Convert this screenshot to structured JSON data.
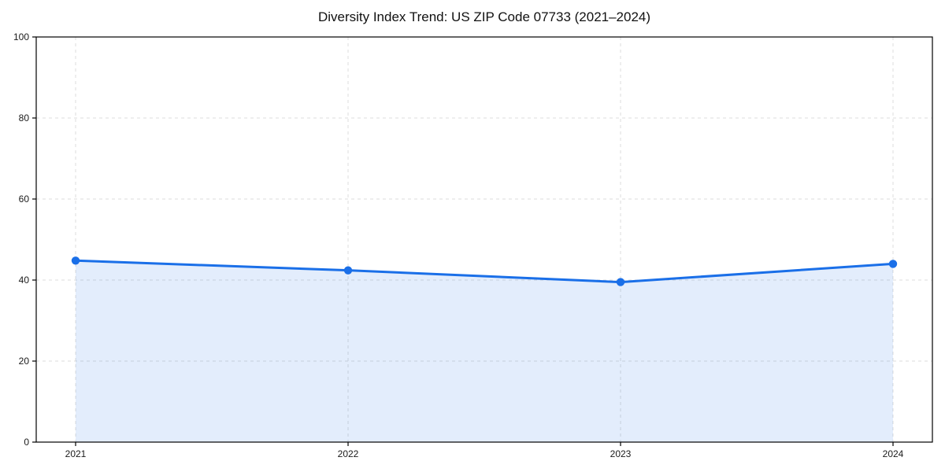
{
  "chart_data": {
    "type": "area",
    "title": "Diversity Index Trend: US ZIP Code 07733 (2021–2024)",
    "x": [
      2021,
      2022,
      2023,
      2024
    ],
    "x_tick_labels": [
      "2021",
      "2022",
      "2023",
      "2024"
    ],
    "series": [
      {
        "name": "Diversity Index",
        "values": [
          44.8,
          42.4,
          39.5,
          44.0
        ]
      }
    ],
    "xlabel": "",
    "ylabel": "",
    "ylim": [
      0,
      100
    ],
    "y_ticks": [
      0,
      20,
      40,
      60,
      80,
      100
    ],
    "grid": "dashed, both axes",
    "legend": "none",
    "colors": {
      "line": "#1a6fe8",
      "marker": "#1a6fe8",
      "area_fill": "rgba(26, 111, 232, 0.12)",
      "gridline": "#dcdcdc",
      "spine": "#000000",
      "tick_text": "#1a1a1a",
      "background": "#ffffff"
    }
  }
}
